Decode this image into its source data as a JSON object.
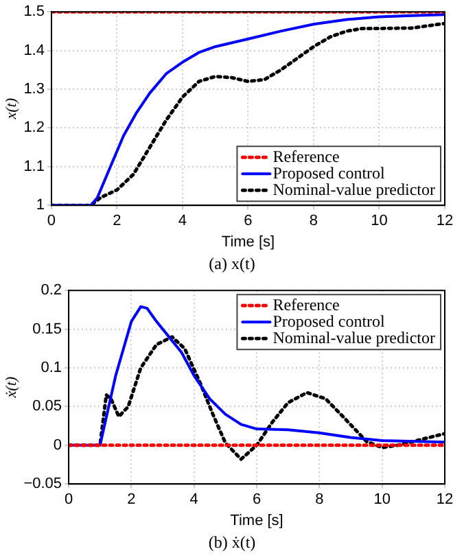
{
  "chart_data": [
    {
      "type": "line",
      "xlabel": "Time [s]",
      "ylabel": "x(t)",
      "annotations": [
        "(a) x(t)"
      ],
      "xlim": [
        0,
        12
      ],
      "xticks": [
        0,
        2,
        4,
        6,
        8,
        10,
        12
      ],
      "ylim": [
        1,
        1.5
      ],
      "yticks": [
        1,
        1.1,
        1.2,
        1.3,
        1.4,
        1.5
      ],
      "grid": true,
      "legend": "bottom right",
      "marker": "none",
      "series": [
        {
          "name": "Reference",
          "color": "#ff0000",
          "line_style": "dotted",
          "x": [
            0,
            12
          ],
          "values": [
            1.5,
            1.5
          ]
        },
        {
          "name": "Proposed control",
          "color": "#0000ff",
          "line_style": "solid",
          "x": [
            0,
            1.2,
            1.4,
            1.8,
            2.2,
            2.6,
            3,
            3.5,
            4,
            4.5,
            5,
            6,
            7,
            8,
            9,
            10,
            11,
            12
          ],
          "values": [
            1,
            1,
            1.02,
            1.1,
            1.18,
            1.24,
            1.29,
            1.34,
            1.37,
            1.395,
            1.41,
            1.43,
            1.45,
            1.468,
            1.48,
            1.487,
            1.49,
            1.493
          ]
        },
        {
          "name": "Nominal-value predictor",
          "color": "#000000",
          "line_style": "dotted",
          "x": [
            0,
            1.2,
            1.5,
            2,
            2.5,
            3,
            3.5,
            4,
            4.5,
            5,
            5.5,
            6,
            6.5,
            7,
            7.5,
            8,
            8.5,
            9,
            9.5,
            10,
            11,
            12
          ],
          "values": [
            1,
            1,
            1.02,
            1.04,
            1.08,
            1.15,
            1.22,
            1.28,
            1.32,
            1.333,
            1.33,
            1.32,
            1.325,
            1.35,
            1.38,
            1.41,
            1.435,
            1.45,
            1.457,
            1.457,
            1.458,
            1.47
          ]
        }
      ]
    },
    {
      "type": "line",
      "xlabel": "Time [s]",
      "ylabel": "ẋ(t)",
      "annotations": [
        "(b) ẋ(t)"
      ],
      "xlim": [
        0,
        12
      ],
      "xticks": [
        0,
        2,
        4,
        6,
        8,
        10,
        12
      ],
      "ylim": [
        -0.05,
        0.2
      ],
      "yticks": [
        -0.05,
        0,
        0.05,
        0.1,
        0.15,
        0.2
      ],
      "grid": true,
      "legend": "top right",
      "marker": "none",
      "series": [
        {
          "name": "Reference",
          "color": "#ff0000",
          "line_style": "dotted",
          "x": [
            0,
            12
          ],
          "values": [
            0,
            0
          ]
        },
        {
          "name": "Proposed control",
          "color": "#0000ff",
          "line_style": "solid",
          "x": [
            0,
            1,
            1.5,
            2,
            2.3,
            2.5,
            2.8,
            3.2,
            3.6,
            4,
            4.5,
            5,
            5.5,
            6,
            7,
            8,
            9,
            10,
            12
          ],
          "values": [
            0,
            0,
            0.09,
            0.16,
            0.179,
            0.177,
            0.16,
            0.14,
            0.12,
            0.09,
            0.06,
            0.04,
            0.027,
            0.021,
            0.02,
            0.016,
            0.01,
            0.006,
            0.004
          ]
        },
        {
          "name": "Nominal-value predictor",
          "color": "#000000",
          "line_style": "dotted",
          "x": [
            0,
            1,
            1.2,
            1.35,
            1.6,
            1.9,
            2.3,
            2.8,
            3.3,
            3.7,
            4.2,
            4.6,
            5,
            5.5,
            6,
            6.5,
            7,
            7.6,
            8.2,
            8.8,
            9.5,
            10,
            10.5,
            11,
            12
          ],
          "values": [
            0,
            0,
            0.065,
            0.06,
            0.037,
            0.05,
            0.1,
            0.13,
            0.14,
            0.125,
            0.08,
            0.04,
            0.003,
            -0.018,
            0,
            0.03,
            0.055,
            0.068,
            0.06,
            0.035,
            0.005,
            -0.003,
            0,
            0.005,
            0.015
          ]
        }
      ]
    }
  ]
}
